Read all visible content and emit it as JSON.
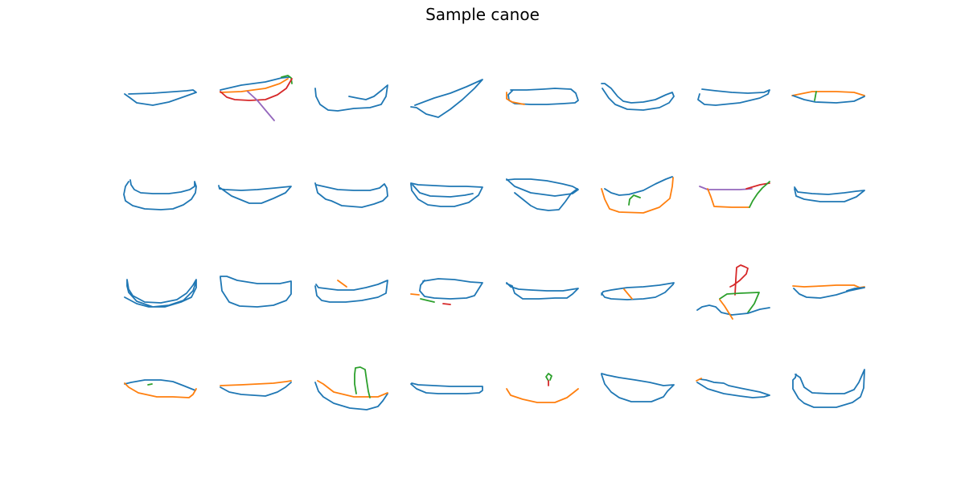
{
  "title": "Sample canoe",
  "colors": {
    "blue": "#1f77b4",
    "orange": "#ff7f0e",
    "green": "#2ca02c",
    "red": "#d62728",
    "purple": "#9467bd"
  },
  "grid": {
    "rows": 4,
    "cols": 8,
    "sketch_count": 32
  }
}
